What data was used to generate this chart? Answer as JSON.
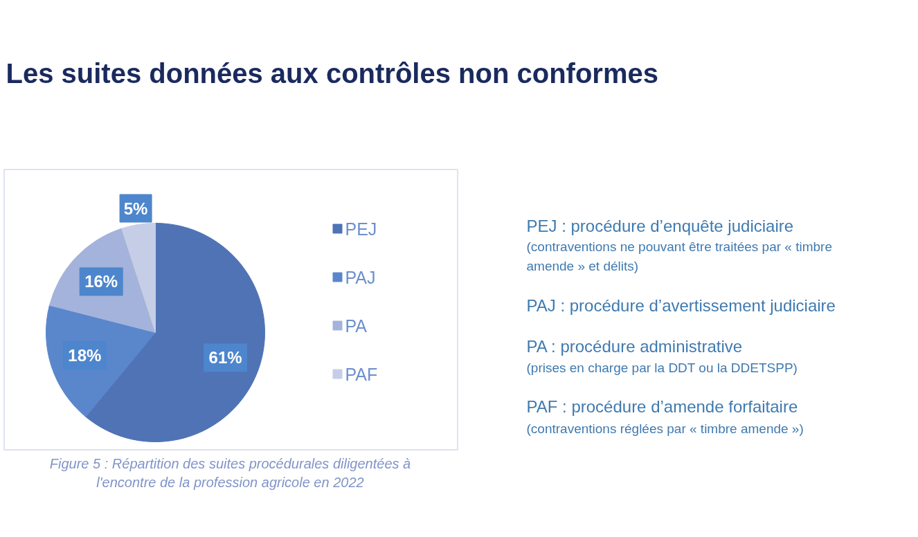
{
  "chart_data": {
    "type": "pie",
    "title": "Les suites données aux contrôles non conformes",
    "categories": [
      "PEJ",
      "PAJ",
      "PA",
      "PAF"
    ],
    "values": [
      61,
      18,
      16,
      5
    ],
    "colors": [
      "#4f73b5",
      "#5a86cc",
      "#a3b3db",
      "#c6cde6"
    ],
    "value_labels": [
      "61%",
      "18%",
      "16%",
      "5%"
    ],
    "legend": "right",
    "annotations": [
      "Figure 5 : Répartition des suites procédurales diligentées à",
      "l'encontre de la profession agricole en 2022",
      "PEJ : procédure d’enquête judiciaire",
      "(contraventions ne pouvant être traitées par « timbre",
      "amende » et délits)",
      "PAJ : procédure d’avertissement judiciaire",
      "PA : procédure administrative",
      "(prises en charge par la DDT ou la DDETSPP)",
      "PAF : procédure d’amende forfaitaire",
      "(contraventions réglées par « timbre amende »)"
    ]
  }
}
